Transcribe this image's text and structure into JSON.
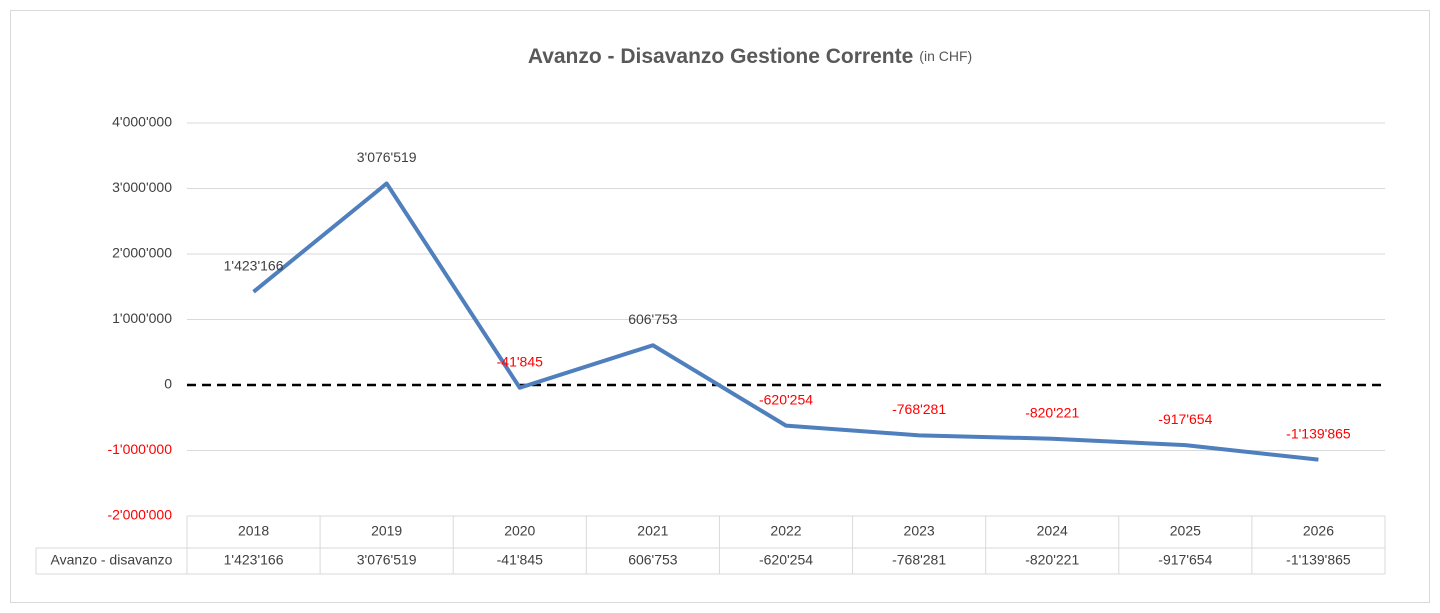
{
  "chart_data": {
    "type": "line",
    "title": "Avanzo - Disavanzo Gestione Corrente",
    "subtitle": "(in CHF)",
    "categories": [
      "2018",
      "2019",
      "2020",
      "2021",
      "2022",
      "2023",
      "2024",
      "2025",
      "2026"
    ],
    "series": [
      {
        "name": "Avanzo - disavanzo",
        "color": "#4f7fbc",
        "values": [
          1423166,
          3076519,
          -41845,
          606753,
          -620254,
          -768281,
          -820221,
          -917654,
          -1139865
        ],
        "value_labels": [
          "1'423'166",
          "3'076'519",
          "-41'845",
          "606'753",
          "-620'254",
          "-768'281",
          "-820'221",
          "-917'654",
          "-1'139'865"
        ]
      }
    ],
    "ylim": [
      -2000000,
      4000000
    ],
    "yticks": [
      {
        "value": -2000000,
        "label": "-2'000'000"
      },
      {
        "value": -1000000,
        "label": "-1'000'000"
      },
      0,
      {
        "value": 1000000,
        "label": "1'000'000"
      },
      {
        "value": 2000000,
        "label": "2'000'000"
      },
      {
        "value": 3000000,
        "label": "3'000'000"
      },
      {
        "value": 4000000,
        "label": "4'000'000"
      }
    ],
    "grid": true,
    "negative_color": "#ff0000",
    "data_table": true
  }
}
